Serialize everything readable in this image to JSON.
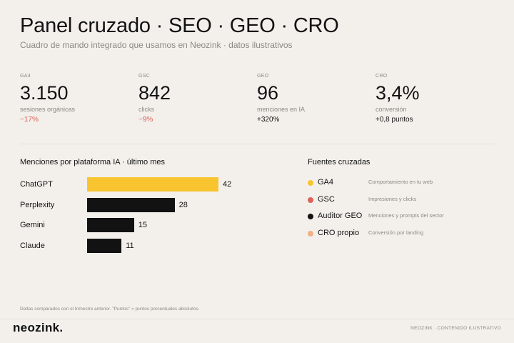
{
  "header": {
    "title": "Panel cruzado · SEO · GEO · CRO",
    "subtitle": "Cuadro de mando integrado que usamos en Neozink · datos ilustrativos"
  },
  "kpis": [
    {
      "source": "GA4",
      "value": "3.150",
      "description": "sesiones orgánicas",
      "delta": "−17%",
      "delta_type": "negative"
    },
    {
      "source": "GSC",
      "value": "842",
      "description": "clicks",
      "delta": "−9%",
      "delta_type": "negative"
    },
    {
      "source": "GEO",
      "value": "96",
      "description": "menciones en IA",
      "delta": "+320%",
      "delta_type": "positive"
    },
    {
      "source": "CRO",
      "value": "3,4%",
      "description": "conversión",
      "delta": "+0,8 puntos",
      "delta_type": "positive"
    }
  ],
  "chart_data": {
    "type": "bar",
    "title": "Menciones por plataforma IA · último mes",
    "orientation": "horizontal",
    "categories": [
      "ChatGPT",
      "Perplexity",
      "Gemini",
      "Claude"
    ],
    "values": [
      42,
      28,
      15,
      11
    ],
    "bar_colors": [
      "#f8c530",
      "#121212",
      "#121212",
      "#121212"
    ],
    "xlim": [
      0,
      42
    ]
  },
  "legend": {
    "title": "Fuentes cruzadas",
    "items": [
      {
        "name": "GA4",
        "description": "Comportamiento en tu web",
        "color": "#f8c530"
      },
      {
        "name": "GSC",
        "description": "Impresiones y clicks",
        "color": "#e0635b"
      },
      {
        "name": "Auditor GEO",
        "description": "Menciones y prompts del sector",
        "color": "#121212"
      },
      {
        "name": "CRO propio",
        "description": "Conversión por landing",
        "color": "#f2b184"
      }
    ]
  },
  "footnote": "Deltas comparados con el trimestre anterior. \"Puntos\" = puntos porcentuales absolutos.",
  "footer": {
    "logo": "neozink.",
    "right_text": "NEOZINK · CONTENIDO ILUSTRATIVO"
  }
}
